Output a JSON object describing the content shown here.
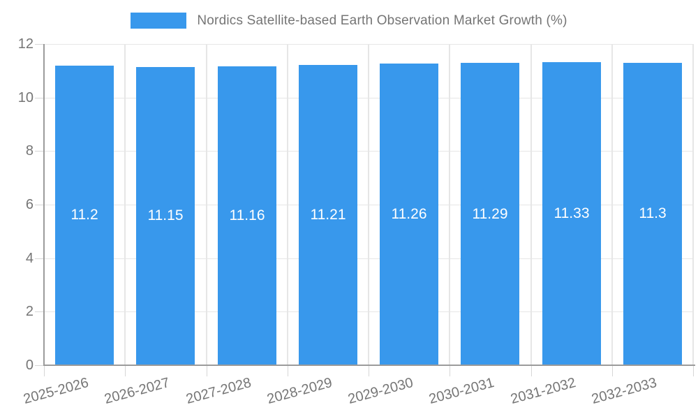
{
  "legend": {
    "label": "Nordics Satellite-based Earth Observation Market Growth (%)"
  },
  "colors": {
    "bar": "#3898ec",
    "axis": "#9b9b9b",
    "grid": "#e6e6e6",
    "tick": "#d6d6d6",
    "label_text": "#757575",
    "value_label_text": "#ffffff",
    "background": "#ffffff"
  },
  "chart_data": {
    "type": "bar",
    "title": "Nordics Satellite-based Earth Observation Market Growth (%)",
    "categories": [
      "2025-2026",
      "2026-2027",
      "2027-2028",
      "2028-2029",
      "2029-2030",
      "2030-2031",
      "2031-2032",
      "2032-2033"
    ],
    "values": [
      11.2,
      11.15,
      11.16,
      11.21,
      11.26,
      11.29,
      11.33,
      11.3
    ],
    "value_labels": [
      "11.2",
      "11.15",
      "11.16",
      "11.21",
      "11.26",
      "11.29",
      "11.33",
      "11.3"
    ],
    "xlabel": "",
    "ylabel": "",
    "ylim": [
      0,
      12
    ],
    "yticks": [
      "0",
      "2",
      "4",
      "6",
      "8",
      "10",
      "12"
    ],
    "ytick_values": [
      0,
      2,
      4,
      6,
      8,
      10,
      12
    ],
    "grid": true,
    "legend_position": "top",
    "x_label_rotation_deg": -15
  }
}
